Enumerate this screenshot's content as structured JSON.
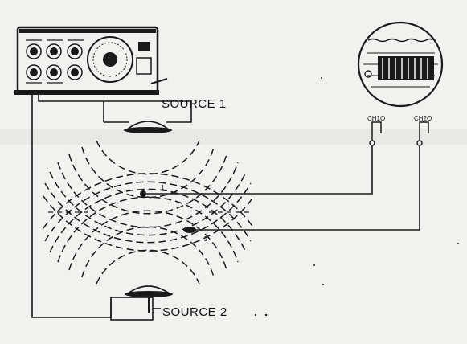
{
  "labels": {
    "source1": "SOURCE 1",
    "source2": "SOURCE 2",
    "ch1": "CH1O",
    "ch2": "CH2O",
    "probe1": "1",
    "probe2": "2"
  }
}
